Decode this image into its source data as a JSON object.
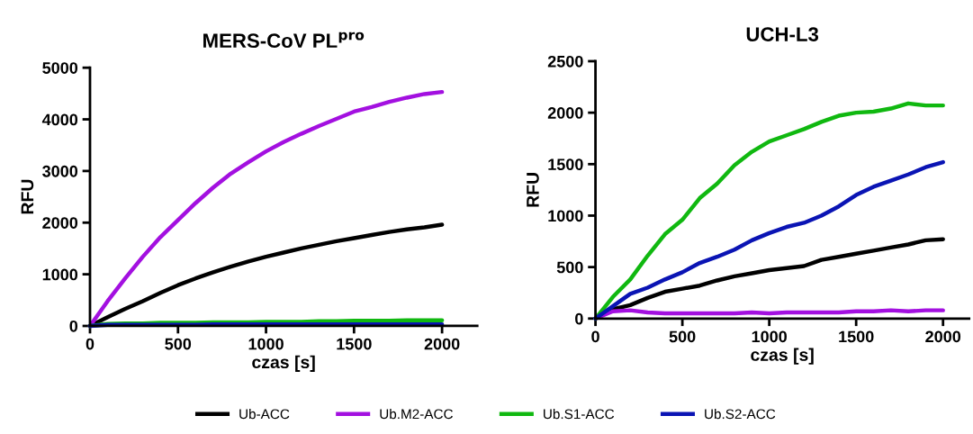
{
  "chart_data": [
    {
      "type": "line",
      "title": "MERS-CoV PL$^{pro}$",
      "xlabel": "czas [s]",
      "ylabel": "RFU",
      "xlim": [
        0,
        2200
      ],
      "ylim": [
        0,
        5000
      ],
      "xticks": [
        0,
        500,
        1000,
        1500,
        2000
      ],
      "yticks": [
        0,
        1000,
        2000,
        3000,
        4000,
        5000
      ],
      "legend": "bottom",
      "grid": false,
      "x": [
        0,
        100,
        200,
        300,
        400,
        500,
        600,
        700,
        800,
        900,
        1000,
        1100,
        1200,
        1300,
        1400,
        1500,
        1600,
        1700,
        1800,
        1900,
        2000
      ],
      "series": [
        {
          "name": "Ub-ACC",
          "color": "#000000",
          "values": [
            0,
            170,
            330,
            480,
            640,
            790,
            920,
            1040,
            1150,
            1250,
            1340,
            1420,
            1500,
            1570,
            1640,
            1700,
            1760,
            1820,
            1870,
            1910,
            1960
          ]
        },
        {
          "name": "Ub.M2-ACC",
          "color": "#a310e0",
          "values": [
            0,
            480,
            920,
            1340,
            1720,
            2050,
            2380,
            2680,
            2950,
            3170,
            3380,
            3560,
            3720,
            3870,
            4010,
            4150,
            4240,
            4340,
            4420,
            4490,
            4530
          ]
        },
        {
          "name": "Ub.S1-ACC",
          "color": "#10b810",
          "values": [
            0,
            40,
            50,
            50,
            60,
            60,
            60,
            70,
            70,
            70,
            80,
            80,
            80,
            90,
            90,
            100,
            100,
            100,
            110,
            110,
            110
          ]
        },
        {
          "name": "Ub.S2-ACC",
          "color": "#0a14b4",
          "values": [
            0,
            20,
            20,
            20,
            20,
            20,
            20,
            30,
            30,
            30,
            30,
            30,
            30,
            30,
            30,
            30,
            30,
            30,
            30,
            30,
            30
          ]
        }
      ]
    },
    {
      "type": "line",
      "title": "UCH-L3",
      "xlabel": "czas [s]",
      "ylabel": "RFU",
      "xlim": [
        0,
        2150
      ],
      "ylim": [
        0,
        2500
      ],
      "xticks": [
        0,
        500,
        1000,
        1500,
        2000
      ],
      "yticks": [
        0,
        500,
        1000,
        1500,
        2000,
        2500
      ],
      "grid": false,
      "x": [
        0,
        100,
        200,
        300,
        400,
        500,
        600,
        700,
        800,
        900,
        1000,
        1100,
        1200,
        1300,
        1400,
        1500,
        1600,
        1700,
        1800,
        1900,
        2000
      ],
      "series": [
        {
          "color": "#000000",
          "values": [
            0,
            90,
            130,
            200,
            260,
            290,
            320,
            370,
            410,
            440,
            470,
            490,
            510,
            570,
            600,
            630,
            660,
            690,
            720,
            760,
            770
          ]
        },
        {
          "color": "#a310e0",
          "values": [
            0,
            70,
            80,
            60,
            50,
            50,
            50,
            50,
            50,
            60,
            50,
            60,
            60,
            60,
            60,
            70,
            70,
            80,
            70,
            80,
            80
          ]
        },
        {
          "color": "#10b810",
          "values": [
            0,
            210,
            380,
            610,
            820,
            960,
            1170,
            1310,
            1490,
            1620,
            1720,
            1780,
            1840,
            1910,
            1970,
            2000,
            2010,
            2040,
            2090,
            2070,
            2070
          ]
        },
        {
          "color": "#0a14b4",
          "values": [
            0,
            120,
            240,
            300,
            380,
            450,
            540,
            600,
            670,
            760,
            830,
            890,
            930,
            1000,
            1090,
            1200,
            1280,
            1340,
            1400,
            1470,
            1520
          ]
        }
      ]
    }
  ]
}
